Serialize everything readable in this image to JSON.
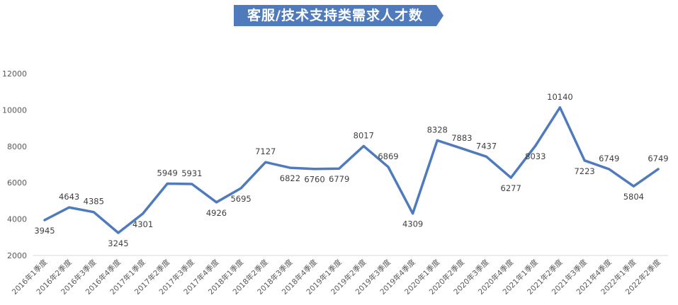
{
  "chart_data": {
    "type": "line",
    "title": "客服/技术支持类需求人才数",
    "xlabel": "",
    "ylabel": "",
    "ylim": [
      2000,
      12000
    ],
    "yticks": [
      2000,
      4000,
      6000,
      8000,
      10000,
      12000
    ],
    "grid": false,
    "legend": "none",
    "line_color": "#4f7bbd",
    "title_bg_color": "#4f7bbd",
    "categories": [
      "2016年1季度",
      "2016年2季度",
      "2016年3季度",
      "2016年4季度",
      "2017年1季度",
      "2017年2季度",
      "2017年3季度",
      "2017年4季度",
      "2018年1季度",
      "2018年2季度",
      "2018年3季度",
      "2018年4季度",
      "2019年1季度",
      "2019年2季度",
      "2019年3季度",
      "2019年4季度",
      "2020年1季度",
      "2020年2季度",
      "2020年3季度",
      "2020年4季度",
      "2021年1季度",
      "2021年2季度",
      "2021年3季度",
      "2021年4季度",
      "2022年1季度",
      "2022年2季度"
    ],
    "series": [
      {
        "values": [
          3945,
          4643,
          4385,
          3245,
          4301,
          5949,
          5931,
          4926,
          5695,
          7127,
          6822,
          6760,
          6779,
          8017,
          6869,
          4309,
          8328,
          7883,
          7437,
          6277,
          8033,
          10140,
          7223,
          6749,
          5804,
          6749
        ]
      }
    ]
  }
}
